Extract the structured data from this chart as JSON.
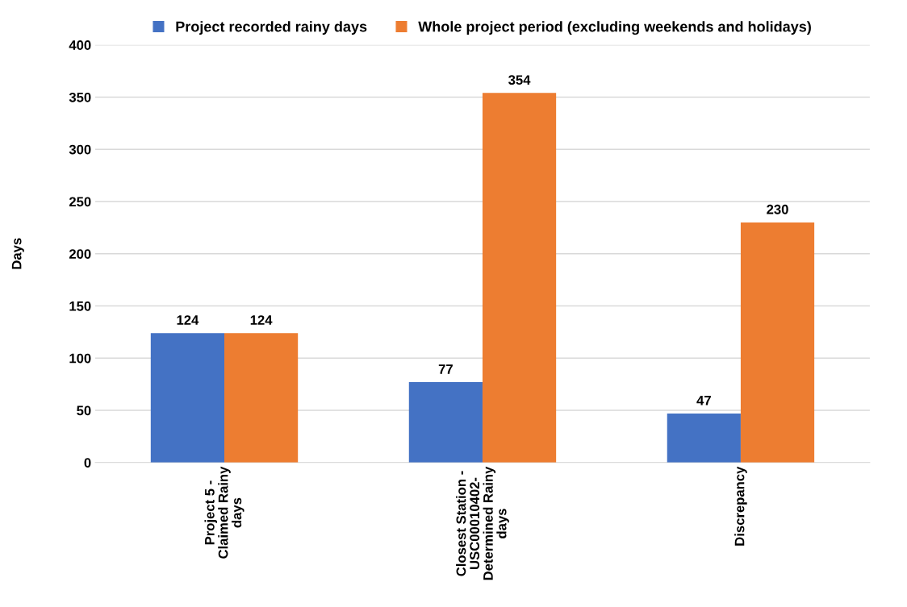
{
  "chart_data": {
    "type": "bar",
    "ylabel": "Days",
    "categories": [
      "Project 5 -\nClaimed Rainy\ndays",
      "Closest Station -\nUSC00010402-\nDetermined Rainy\ndays",
      "Discrepancy"
    ],
    "series": [
      {
        "name": "Project recorded rainy days",
        "color": "#4472c4",
        "values": [
          124,
          77,
          47
        ]
      },
      {
        "name": "Whole project period (excluding weekends and holidays)",
        "color": "#ed7d31",
        "values": [
          124,
          354,
          230
        ]
      }
    ],
    "ylim": [
      0,
      400
    ],
    "yticks": [
      0,
      50,
      100,
      150,
      200,
      250,
      300,
      350,
      400
    ],
    "grid": "y",
    "legend": "top",
    "data_labels": true
  }
}
